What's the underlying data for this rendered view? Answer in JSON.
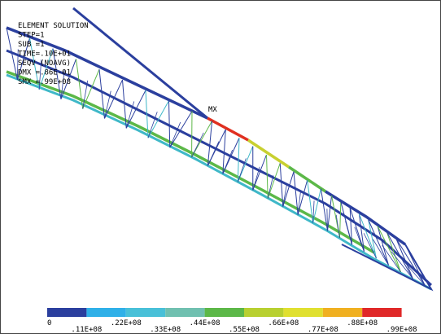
{
  "info": {
    "lines": [
      "ELEMENT SOLUTION",
      "STEP=1",
      "SUB =1",
      "TIME=.10E+01",
      "SEQV     (NOAVG)",
      "DMX =.86E-01",
      "SMX =.99E+08"
    ]
  },
  "max_label": "MX",
  "legend": {
    "labels": [
      "0",
      ".11E+08",
      ".22E+08",
      ".33E+08",
      ".44E+08",
      ".55E+08",
      ".66E+08",
      ".77E+08",
      ".88E+08",
      ".99E+08"
    ]
  }
}
